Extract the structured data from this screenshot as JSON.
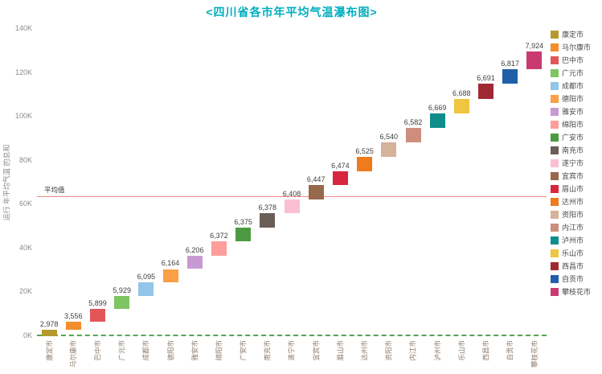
{
  "styles": {
    "title_color": "#00AEBE",
    "avg_line_color": "#F28B82",
    "baseline_color": "#55A555",
    "ytick_color": "#8B8B8B",
    "xlabel_color": "#8B7B6E",
    "bar_label_color": "#404040",
    "legend_label_color": "#4A4A4A"
  },
  "chart_data": {
    "type": "bar",
    "subtype": "waterfall",
    "title": "<四川省各市年平均气温瀑布图>",
    "ylabel": "运行 年平均气温 的总和",
    "ylim": [
      0,
      140000
    ],
    "ytick_labels": [
      "0K",
      "20K",
      "40K",
      "60K",
      "80K",
      "100K",
      "120K",
      "140K"
    ],
    "ytick_step": 20000,
    "grid": false,
    "legend_position": "right",
    "categories": [
      "康定市",
      "马尔康市",
      "巴中市",
      "广元市",
      "成都市",
      "德阳市",
      "雅安市",
      "绵阳市",
      "广安市",
      "南充市",
      "遂宁市",
      "宜宾市",
      "眉山市",
      "达州市",
      "资阳市",
      "内江市",
      "泸州市",
      "乐山市",
      "西昌市",
      "自贡市",
      "攀枝花市"
    ],
    "values": [
      2978,
      3556,
      5899,
      5929,
      6095,
      6164,
      6206,
      6372,
      6375,
      6378,
      6408,
      6447,
      6474,
      6525,
      6540,
      6582,
      6669,
      6688,
      6691,
      6817,
      7924
    ],
    "value_labels": [
      "2,978",
      "3,556",
      "5,899",
      "5,929",
      "6,095",
      "6,164",
      "6,206",
      "6,372",
      "6,375",
      "6,378",
      "6,408",
      "6,447",
      "6,474",
      "6,525",
      "6,540",
      "6,582",
      "6,669",
      "6,688",
      "6,691",
      "6,817",
      "7,924"
    ],
    "colors": [
      "#B6992D",
      "#F28E2B",
      "#E15759",
      "#7DC462",
      "#92C5E8",
      "#FBA045",
      "#C79BD1",
      "#FF9D9A",
      "#4C9A41",
      "#6B5E57",
      "#FABFD2",
      "#96684C",
      "#D7263D",
      "#EE7B1C",
      "#D5B29A",
      "#CE8E7E",
      "#0F8C8C",
      "#F0C53F",
      "#A02833",
      "#2160A8",
      "#C93A70"
    ],
    "average": {
      "label": "平均值",
      "value": 63278
    }
  }
}
